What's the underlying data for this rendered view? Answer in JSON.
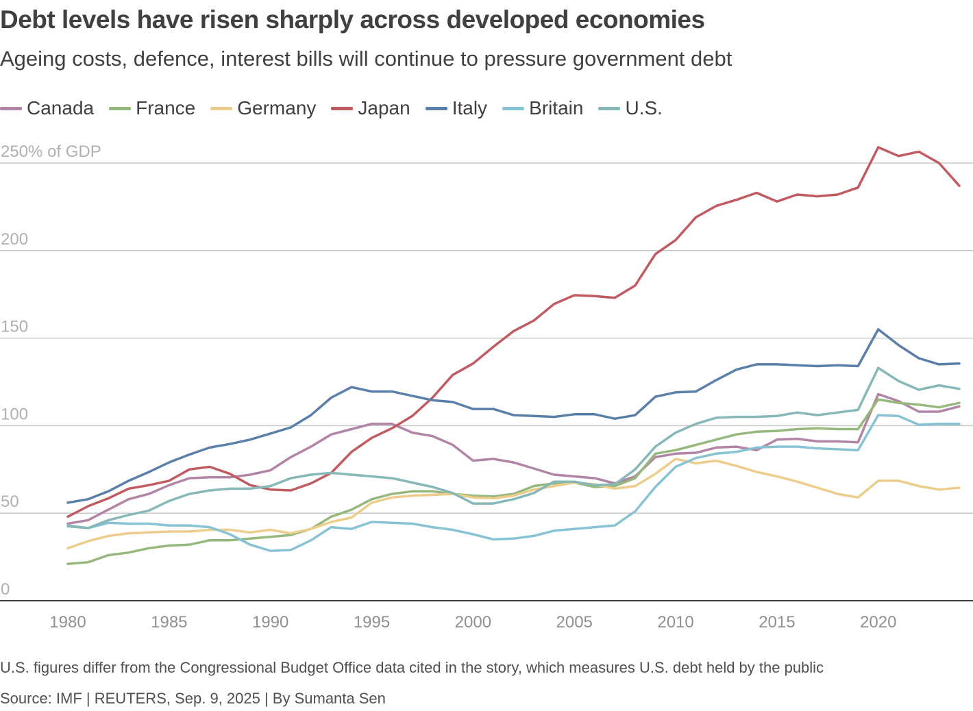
{
  "title": "Debt levels have risen sharply across developed economies",
  "subtitle": "Ageing costs, defence, interest bills will continue to pressure government debt",
  "note": "U.S. figures differ from the Congressional Budget Office data cited in the story, which measures U.S. debt held by the public",
  "source": "Source: IMF | REUTERS, Sep. 9, 2025 | By Sumanta Sen",
  "chart_data": {
    "type": "line",
    "ylim": [
      0,
      250
    ],
    "xlim": [
      1980,
      2024
    ],
    "y_ticks": [
      {
        "value": 250,
        "label": "250% of GDP"
      },
      {
        "value": 200,
        "label": "200"
      },
      {
        "value": 150,
        "label": "150"
      },
      {
        "value": 100,
        "label": "100"
      },
      {
        "value": 50,
        "label": "50"
      },
      {
        "value": 0,
        "label": "0"
      }
    ],
    "x_ticks": [
      {
        "value": 1980,
        "label": "1980"
      },
      {
        "value": 1985,
        "label": "1985"
      },
      {
        "value": 1990,
        "label": "1990"
      },
      {
        "value": 1995,
        "label": "1995"
      },
      {
        "value": 2000,
        "label": "2000"
      },
      {
        "value": 2005,
        "label": "2005"
      },
      {
        "value": 2010,
        "label": "2010"
      },
      {
        "value": 2015,
        "label": "2015"
      },
      {
        "value": 2020,
        "label": "2020"
      }
    ],
    "grid": true,
    "legend_position": "top-left",
    "x": [
      1980,
      1981,
      1982,
      1983,
      1984,
      1985,
      1986,
      1987,
      1988,
      1989,
      1990,
      1991,
      1992,
      1993,
      1994,
      1995,
      1996,
      1997,
      1998,
      1999,
      2000,
      2001,
      2002,
      2003,
      2004,
      2005,
      2006,
      2007,
      2008,
      2009,
      2010,
      2011,
      2012,
      2013,
      2014,
      2015,
      2016,
      2017,
      2018,
      2019,
      2020,
      2021,
      2022,
      2023,
      2024
    ],
    "series": [
      {
        "name": "Canada",
        "color": "#b285a6",
        "values": [
          44,
          46,
          52,
          58,
          61,
          66,
          70,
          70.5,
          70.5,
          72,
          74.5,
          82,
          88,
          95,
          98,
          101,
          101,
          96,
          94,
          89,
          80,
          81,
          79,
          75.5,
          72,
          71,
          70,
          67,
          71,
          82,
          84,
          84.5,
          87.5,
          88,
          86,
          92,
          92.5,
          91,
          91,
          90.5,
          118,
          114,
          108,
          108,
          111
        ]
      },
      {
        "name": "France",
        "color": "#97b87d",
        "values": [
          21,
          22,
          26,
          27.5,
          30,
          31.5,
          32,
          34.5,
          34.5,
          35.5,
          36.5,
          37.5,
          41,
          48,
          52,
          58,
          61,
          62.5,
          62.5,
          61,
          60,
          59.5,
          61,
          65.5,
          67,
          67.5,
          65,
          65.5,
          70,
          84,
          86,
          89,
          92,
          95,
          96.5,
          97,
          98,
          98.5,
          98,
          98,
          115,
          113,
          112,
          110.5,
          113
        ]
      },
      {
        "name": "Germany",
        "color": "#eccd8c",
        "values": [
          30,
          34,
          37,
          38.5,
          39,
          39.5,
          39.5,
          40.5,
          40.5,
          39,
          40.5,
          38.5,
          41,
          45,
          47.5,
          56,
          59,
          60,
          60.5,
          61,
          59,
          58.5,
          60,
          63.5,
          65.5,
          67.5,
          66.5,
          64,
          65.5,
          72.5,
          81,
          78.5,
          80,
          77,
          73.5,
          71,
          68,
          64.5,
          61,
          59,
          68.5,
          68.5,
          65.5,
          63.5,
          64.5
        ]
      },
      {
        "name": "Japan",
        "color": "#c15b62",
        "values": [
          48,
          54,
          58.5,
          64,
          66,
          68.5,
          75,
          76.5,
          72.5,
          66,
          63.5,
          63,
          67,
          73,
          85,
          93,
          98.5,
          105.5,
          116,
          129,
          135.5,
          145,
          154,
          160,
          169.5,
          174.5,
          174,
          173,
          180,
          198,
          206,
          219,
          225.5,
          229,
          233,
          228,
          232,
          231,
          232,
          236,
          259,
          254,
          256.5,
          250,
          237
        ]
      },
      {
        "name": "Italy",
        "color": "#5a7fa8",
        "values": [
          56,
          58,
          62.5,
          68.5,
          73.5,
          79,
          83.5,
          87.5,
          89.5,
          92,
          95.5,
          99,
          106,
          116,
          122,
          119.5,
          119.5,
          117,
          114.5,
          113.5,
          109.5,
          109.5,
          106,
          105.5,
          105,
          106.5,
          106.5,
          104,
          106,
          116.5,
          119,
          119.5,
          126,
          132,
          135,
          135,
          134.5,
          134,
          134.5,
          134,
          155,
          146,
          138.5,
          135,
          135.5
        ]
      },
      {
        "name": "Britain",
        "color": "#87c3d4",
        "values": [
          43,
          41.5,
          44.5,
          44,
          44,
          43,
          43,
          42,
          38,
          32,
          28.5,
          29,
          34.5,
          42,
          41,
          45,
          44.5,
          44,
          42,
          40.5,
          38,
          35,
          35.5,
          37,
          40,
          41,
          42,
          43,
          51,
          65,
          76.5,
          81.5,
          84,
          85,
          87.5,
          88,
          88,
          87,
          86.5,
          86,
          106,
          105.5,
          100.5,
          101,
          101
        ]
      },
      {
        "name": "U.S.",
        "color": "#87b8b8",
        "values": [
          42.5,
          41.5,
          46,
          49,
          51.5,
          57,
          61,
          63,
          64,
          64,
          65.5,
          70,
          72,
          73,
          72,
          71,
          70,
          67.5,
          65,
          61.5,
          55.5,
          55.5,
          58,
          61.5,
          68,
          68,
          66,
          66.5,
          75,
          88,
          96,
          101,
          104.5,
          105,
          105,
          105.5,
          107.5,
          106,
          107.5,
          109,
          133,
          125.5,
          120.5,
          123,
          121
        ]
      }
    ]
  }
}
